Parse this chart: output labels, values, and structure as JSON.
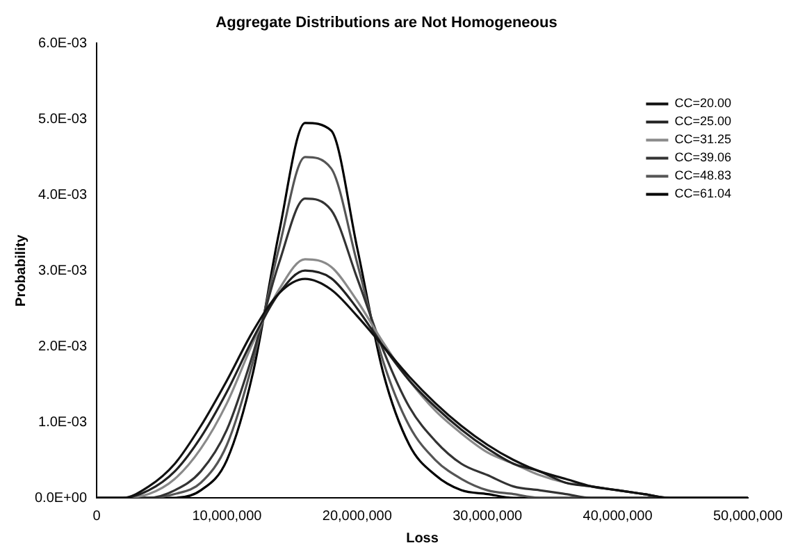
{
  "chart_data": {
    "type": "line",
    "title": "Aggregate Distributions are Not Homogeneous",
    "xlabel": "Loss",
    "ylabel": "Probability",
    "x": [
      0,
      2000000,
      4000000,
      6000000,
      8000000,
      10000000,
      12000000,
      14000000,
      16000000,
      18000000,
      20000000,
      22000000,
      24000000,
      26000000,
      28000000,
      30000000,
      32000000,
      34000000,
      36000000,
      38000000,
      40000000,
      42000000,
      44000000,
      46000000,
      48000000,
      50000000
    ],
    "series": [
      {
        "name": "CC=20.00",
        "color": "#111111",
        "values": [
          0,
          0,
          0.00015,
          0.00045,
          0.00095,
          0.00155,
          0.0022,
          0.0027,
          0.00289,
          0.00275,
          0.0024,
          0.002,
          0.0016,
          0.00125,
          0.00095,
          0.0007,
          0.0005,
          0.00035,
          0.00025,
          0.00015,
          0.0001,
          5e-05,
          0,
          0,
          0,
          0
        ]
      },
      {
        "name": "CC=25.00",
        "color": "#222222",
        "values": [
          0,
          0,
          0.0001,
          0.00035,
          0.0008,
          0.0014,
          0.0021,
          0.0027,
          0.003,
          0.0029,
          0.0025,
          0.002,
          0.00155,
          0.0012,
          0.0009,
          0.00065,
          0.00045,
          0.00035,
          0.0002,
          0.00015,
          0.0001,
          5e-05,
          0,
          0,
          0,
          0
        ]
      },
      {
        "name": "CC=31.25",
        "color": "#8a8a8a",
        "values": [
          0,
          0,
          5e-05,
          0.00025,
          0.00065,
          0.00125,
          0.00205,
          0.00275,
          0.00315,
          0.00305,
          0.0026,
          0.00205,
          0.00155,
          0.00115,
          0.00085,
          0.0006,
          0.00045,
          0.0003,
          0.0002,
          0.00015,
          0.0001,
          5e-05,
          0,
          0,
          0,
          0
        ]
      },
      {
        "name": "CC=39.06",
        "color": "#333333",
        "values": [
          0,
          0,
          0,
          0.0001,
          0.00035,
          0.0009,
          0.0019,
          0.0031,
          0.00395,
          0.0038,
          0.0029,
          0.00195,
          0.0012,
          0.00075,
          0.00045,
          0.0003,
          0.00015,
          0.0001,
          5e-05,
          0,
          0,
          0,
          0,
          0,
          0,
          0
        ]
      },
      {
        "name": "CC=48.83",
        "color": "#555555",
        "values": [
          0,
          0,
          0,
          5e-05,
          0.0002,
          0.0007,
          0.0018,
          0.0033,
          0.0045,
          0.00435,
          0.0031,
          0.0018,
          0.00095,
          0.0005,
          0.00025,
          0.0001,
          5e-05,
          0,
          0,
          0,
          0,
          0,
          0,
          0,
          0,
          0
        ]
      },
      {
        "name": "CC=61.04",
        "color": "#000000",
        "values": [
          0,
          0,
          0,
          0,
          0.0001,
          0.0005,
          0.00165,
          0.0035,
          0.00495,
          0.00485,
          0.0033,
          0.00165,
          0.0007,
          0.0003,
          0.0001,
          5e-05,
          0,
          0,
          0,
          0,
          0,
          0,
          0,
          0,
          0,
          0
        ]
      }
    ],
    "xlim": [
      0,
      50000000
    ],
    "xticks": [
      0,
      {
        "value": 10000000,
        "label": "10,000,000"
      },
      {
        "value": 20000000,
        "label": "20,000,000"
      },
      {
        "value": 30000000,
        "label": "30,000,000"
      },
      {
        "value": 40000000,
        "label": "40,000,000"
      },
      {
        "value": 50000000,
        "label": "50,000,000"
      }
    ],
    "ylim": [
      0,
      0.006
    ],
    "yticks": [
      {
        "value": 0,
        "label": "0.0E+00"
      },
      {
        "value": 0.001,
        "label": "1.0E-03"
      },
      {
        "value": 0.002,
        "label": "2.0E-03"
      },
      {
        "value": 0.003,
        "label": "3.0E-03"
      },
      {
        "value": 0.004,
        "label": "4.0E-03"
      },
      {
        "value": 0.005,
        "label": "5.0E-03"
      },
      {
        "value": 0.006,
        "label": "6.0E-03"
      }
    ],
    "grid": false,
    "legend": "top right",
    "marker": "none",
    "line_style": "solid"
  }
}
